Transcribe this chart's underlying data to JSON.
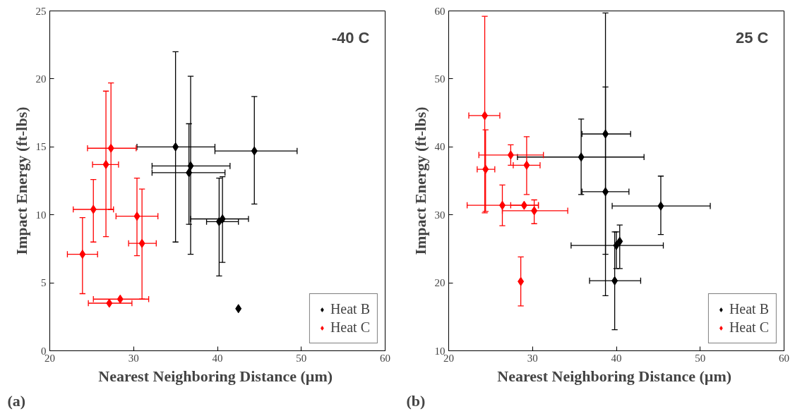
{
  "chart_data": [
    {
      "type": "scatter",
      "xlabel": "Nearest Neighboring  Distance (µm)",
      "ylabel": "Impact Energy (ft-lbs)",
      "annotations": [
        "-40 C",
        "(a)"
      ],
      "xlim": [
        20,
        60
      ],
      "xticks": [
        20,
        30,
        40,
        50,
        60
      ],
      "ylim": [
        0,
        25
      ],
      "yticks": [
        0,
        5,
        10,
        15,
        20,
        25
      ],
      "grid": false,
      "legend": "bottom right",
      "marker": "diamond",
      "series": [
        {
          "name": "Heat B",
          "color": "#000000",
          "x": [
            35,
            36.8,
            36.6,
            40.2,
            40.6,
            44.4,
            42.5
          ],
          "values": [
            15,
            13.6,
            13.1,
            9.5,
            9.7,
            14.7,
            3.1
          ],
          "errors": [
            [
              8,
              22
            ],
            [
              7.1,
              20.2
            ],
            [
              9.3,
              16.7
            ],
            [
              5.5,
              12.7
            ],
            [
              6.5,
              12.8
            ],
            [
              10.8,
              18.7
            ],
            null
          ],
          "xerrors": [
            [
              30.4,
              39.7
            ],
            [
              32.2,
              41.5
            ],
            [
              32.2,
              40.9
            ],
            [
              38.7,
              42.5
            ],
            [
              36.8,
              43.7
            ],
            [
              39.7,
              49.5
            ],
            null
          ]
        },
        {
          "name": "Heat C",
          "color": "#ff0000",
          "x": [
            23.9,
            25.2,
            26.7,
            27.3,
            30.4,
            31,
            27.1,
            28.4
          ],
          "values": [
            7.1,
            10.4,
            13.7,
            14.9,
            9.9,
            7.9,
            3.5,
            3.8
          ],
          "errors": [
            [
              4.2,
              9.8
            ],
            [
              8,
              12.6
            ],
            [
              8.4,
              19.1
            ],
            [
              10.4,
              19.7
            ],
            [
              7,
              12.7
            ],
            [
              3.8,
              11.9
            ],
            null,
            null
          ],
          "xerrors": [
            [
              22.1,
              25.7
            ],
            [
              22.8,
              27.6
            ],
            [
              25.1,
              28.2
            ],
            [
              24.5,
              30.3
            ],
            [
              27.9,
              32.9
            ],
            [
              29.4,
              32.7
            ],
            [
              24.6,
              29.8
            ],
            [
              25.2,
              31.8
            ]
          ]
        }
      ]
    },
    {
      "type": "scatter",
      "xlabel": "Nearest Neighboring  Distance (µm)",
      "ylabel": "Impact Energy (ft-lbs)",
      "annotations": [
        "25 C",
        "(b)"
      ],
      "xlim": [
        20,
        60
      ],
      "xticks": [
        20,
        30,
        40,
        50,
        60
      ],
      "ylim": [
        10,
        60
      ],
      "yticks": [
        10,
        20,
        30,
        40,
        50,
        60
      ],
      "grid": false,
      "legend": "bottom right",
      "marker": "diamond",
      "series": [
        {
          "name": "Heat B",
          "color": "#000000",
          "x": [
            38.7,
            35.8,
            38.7,
            45.3,
            40,
            40.4,
            39.8
          ],
          "values": [
            41.9,
            38.5,
            33.4,
            31.3,
            25.5,
            26.1,
            20.3
          ],
          "errors": [
            [
              18.1,
              48.8
            ],
            [
              33,
              44.1
            ],
            [
              24.2,
              59.7
            ],
            [
              27.1,
              35.7
            ],
            [
              22.1,
              27.5
            ],
            [
              22.1,
              28.5
            ],
            [
              13.1,
              27.5
            ]
          ],
          "xerrors": [
            [
              35.9,
              41.7
            ],
            [
              28.2,
              43.3
            ],
            [
              35.9,
              41.5
            ],
            [
              39.5,
              51.2
            ],
            [
              34.6,
              45.6
            ],
            null,
            [
              36.8,
              42.9
            ]
          ]
        },
        {
          "name": "Heat C",
          "color": "#ff0000",
          "x": [
            24.3,
            24.4,
            27.4,
            29.3,
            26.4,
            29,
            30.2,
            28.6
          ],
          "values": [
            44.6,
            36.7,
            38.8,
            37.3,
            31.4,
            31.4,
            30.6,
            20.2
          ],
          "errors": [
            [
              30.3,
              59.2
            ],
            [
              30.5,
              42.5
            ],
            [
              37.3,
              40.3
            ],
            [
              33,
              41.5
            ],
            [
              28.4,
              34.4
            ],
            null,
            [
              28.7,
              32.2
            ],
            [
              16.6,
              23.8
            ]
          ],
          "xerrors": [
            [
              22.4,
              26.1
            ],
            [
              23.4,
              25.5
            ],
            [
              23.6,
              31.3
            ],
            [
              27.7,
              30.9
            ],
            [
              22.2,
              30.7
            ],
            [
              27.4,
              30.7
            ],
            [
              26.4,
              34.2
            ],
            null
          ]
        }
      ]
    }
  ]
}
